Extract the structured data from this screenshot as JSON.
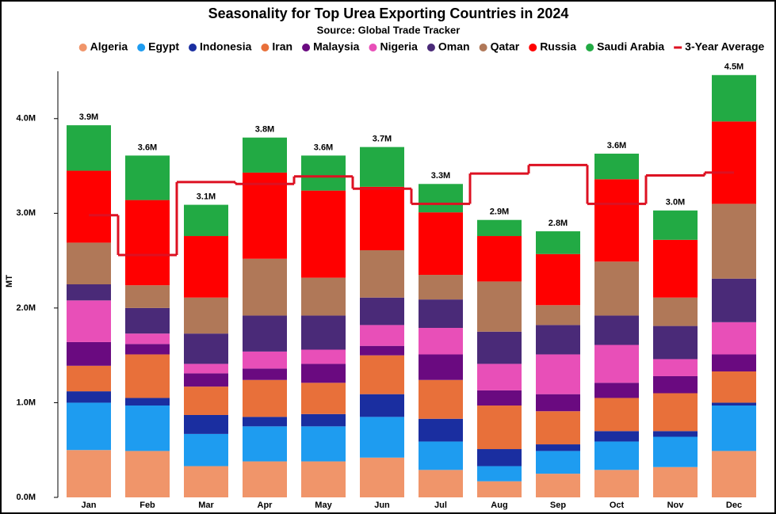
{
  "chart_data": {
    "type": "stacked_bar",
    "title": "Seasonality for Top Urea Exporting Countries in 2024",
    "subtitle": "Source: Global Trade Tracker",
    "y_label": "MT",
    "categories": [
      "Jan",
      "Feb",
      "Mar",
      "Apr",
      "May",
      "Jun",
      "Jul",
      "Aug",
      "Sep",
      "Oct",
      "Nov",
      "Dec"
    ],
    "series": [
      {
        "name": "Algeria",
        "color": "#f0956a",
        "values": [
          500000,
          490000,
          330000,
          380000,
          380000,
          420000,
          290000,
          170000,
          250000,
          290000,
          320000,
          490000
        ]
      },
      {
        "name": "Egypt",
        "color": "#1e9cf0",
        "values": [
          500000,
          480000,
          340000,
          370000,
          370000,
          430000,
          300000,
          160000,
          240000,
          300000,
          320000,
          480000
        ]
      },
      {
        "name": "Indonesia",
        "color": "#1a2ea0",
        "values": [
          120000,
          80000,
          200000,
          100000,
          130000,
          240000,
          240000,
          180000,
          70000,
          110000,
          60000,
          30000
        ]
      },
      {
        "name": "Iran",
        "color": "#e8703a",
        "values": [
          270000,
          460000,
          300000,
          390000,
          330000,
          410000,
          410000,
          460000,
          350000,
          350000,
          400000,
          330000
        ]
      },
      {
        "name": "Malaysia",
        "color": "#6a0a80",
        "values": [
          250000,
          110000,
          140000,
          120000,
          200000,
          100000,
          270000,
          160000,
          180000,
          160000,
          180000,
          180000
        ]
      },
      {
        "name": "Nigeria",
        "color": "#e84fb8",
        "values": [
          440000,
          110000,
          100000,
          180000,
          150000,
          220000,
          280000,
          280000,
          420000,
          400000,
          180000,
          340000
        ]
      },
      {
        "name": "Oman",
        "color": "#4a2a78",
        "values": [
          170000,
          270000,
          320000,
          380000,
          360000,
          290000,
          300000,
          340000,
          310000,
          310000,
          350000,
          460000
        ]
      },
      {
        "name": "Qatar",
        "color": "#b07858",
        "values": [
          440000,
          240000,
          380000,
          600000,
          400000,
          500000,
          260000,
          530000,
          210000,
          570000,
          300000,
          790000
        ]
      },
      {
        "name": "Russia",
        "color": "#ff0000",
        "values": [
          760000,
          900000,
          650000,
          910000,
          920000,
          670000,
          660000,
          480000,
          540000,
          870000,
          610000,
          870000
        ]
      },
      {
        "name": "Saudi Arabia",
        "color": "#22aa44",
        "values": [
          480000,
          470000,
          330000,
          370000,
          370000,
          420000,
          300000,
          170000,
          240000,
          270000,
          310000,
          490000
        ]
      }
    ],
    "total_labels": [
      "3.9M",
      "3.6M",
      "3.1M",
      "3.8M",
      "3.6M",
      "3.7M",
      "3.3M",
      "2.9M",
      "2.8M",
      "3.6M",
      "3.0M",
      "4.5M"
    ],
    "average": {
      "name": "3-Year Average",
      "color": "#dd1122",
      "values": [
        2980000,
        2560000,
        3330000,
        3310000,
        3390000,
        3260000,
        3100000,
        3420000,
        3510000,
        3100000,
        3400000,
        3430000
      ]
    },
    "ylim": [
      0,
      4500000
    ],
    "yticks": [
      {
        "value": 0,
        "label": "0.0M"
      },
      {
        "value": 1000000,
        "label": "1.0M"
      },
      {
        "value": 2000000,
        "label": "2.0M"
      },
      {
        "value": 3000000,
        "label": "3.0M"
      },
      {
        "value": 4000000,
        "label": "4.0M"
      }
    ]
  }
}
